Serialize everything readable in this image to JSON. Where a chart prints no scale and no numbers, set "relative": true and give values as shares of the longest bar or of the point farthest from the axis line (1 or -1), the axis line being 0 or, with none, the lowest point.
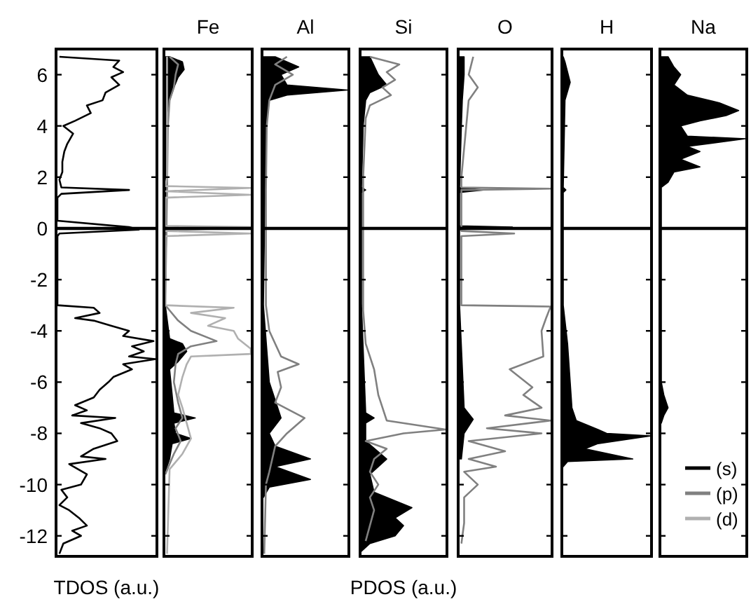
{
  "chart_data": [
    {
      "type": "line",
      "orientation": "horizontal",
      "xlabel": "TDOS (a.u.)",
      "relative": true,
      "ylim": [
        -12.8,
        7
      ],
      "yticks": [
        -12,
        -10,
        -8,
        -6,
        -4,
        -2,
        0,
        2,
        4,
        6
      ],
      "tick_labels": "y",
      "ref_lines": [
        {
          "axis": "y",
          "value": 0
        }
      ],
      "series": [
        {
          "color": "#000000",
          "x": [
            6.7,
            6.55,
            6.3,
            6.1,
            5.9,
            5.6,
            5.3,
            5.0,
            4.8,
            4.5,
            4.2,
            4.0,
            3.7,
            3.3,
            3.0,
            2.6,
            2.2,
            1.9,
            1.6,
            1.5,
            1.35,
            1.2,
            0.3,
            0.05,
            -0.05,
            -0.2,
            -0.3,
            -3.0,
            -3.1,
            -3.3,
            -3.5,
            -3.6,
            -3.8,
            -4.0,
            -4.2,
            -4.4,
            -4.6,
            -4.8,
            -5.0,
            -5.1,
            -5.3,
            -5.5,
            -5.8,
            -6.0,
            -6.3,
            -6.6,
            -6.9,
            -7.1,
            -7.3,
            -7.4,
            -7.6,
            -7.8,
            -8.0,
            -8.3,
            -8.6,
            -8.9,
            -9.0,
            -9.2,
            -9.6,
            -10.0,
            -10.2,
            -10.5,
            -10.8,
            -11.0,
            -11.3,
            -11.6,
            -11.8,
            -12.0,
            -12.3,
            -12.7
          ],
          "values": [
            0.02,
            0.63,
            0.57,
            0.67,
            0.55,
            0.63,
            0.49,
            0.46,
            0.3,
            0.34,
            0.18,
            0.06,
            0.16,
            0.1,
            0.07,
            0.05,
            0.05,
            0.02,
            0.04,
            0.73,
            0.04,
            0,
            0,
            0.73,
            0.83,
            0.02,
            0,
            0,
            0.37,
            0.43,
            0.18,
            0.37,
            0.55,
            0.73,
            0.67,
            0.98,
            0.76,
            0.88,
            0.73,
            1,
            0.67,
            0.76,
            0.57,
            0.52,
            0.43,
            0.37,
            0.18,
            0.3,
            0.15,
            0.59,
            0.24,
            0.43,
            0.55,
            0.61,
            0.37,
            0.24,
            0.49,
            0.12,
            0.3,
            0.24,
            0.04,
            0.1,
            0.02,
            0.12,
            0.22,
            0.3,
            0.15,
            0.24,
            0.06,
            0.02
          ]
        }
      ]
    },
    {
      "type": "line",
      "orientation": "horizontal",
      "title": "Fe",
      "relative": true,
      "ylim": [
        -12.8,
        7
      ],
      "yticks": [
        -12,
        -10,
        -8,
        -6,
        -4,
        -2,
        0,
        2,
        4,
        6
      ],
      "tick_labels": false,
      "ref_lines": [
        {
          "axis": "y",
          "value": 0
        }
      ],
      "series": [
        {
          "type": "area",
          "color": "#000000",
          "x": [
            6.7,
            6.5,
            6.2,
            5.9,
            5.5,
            5.0,
            4.5,
            1.5,
            -3.0,
            -4.3,
            -4.5,
            -4.8,
            -5.2,
            -5.5,
            -6.5,
            -7.2,
            -7.4,
            -7.6,
            -8.0,
            -8.2,
            -8.4,
            -9.0,
            -9.5
          ],
          "values": [
            0.05,
            0.2,
            0.22,
            0.15,
            0.1,
            0.05,
            0.02,
            0.02,
            0,
            0.05,
            0.2,
            0.25,
            0.15,
            0.05,
            0.08,
            0.1,
            0.35,
            0.1,
            0.12,
            0.3,
            0.08,
            0.05,
            0
          ]
        },
        {
          "color": "#808080",
          "x": [
            6.7,
            6.4,
            6.0,
            5.5,
            5.0,
            4.0,
            1.5,
            -3.0,
            -3.2,
            -3.6,
            -4.0,
            -4.4,
            -4.6,
            -4.9,
            -5.3,
            -6.0,
            -6.8,
            -7.4,
            -7.8,
            -8.3,
            -8.8,
            -9.2,
            -9.6
          ],
          "values": [
            0.05,
            0.15,
            0.12,
            0.1,
            0.05,
            0.03,
            0.02,
            0,
            0.05,
            0.15,
            0.3,
            0.6,
            0.3,
            0.15,
            0.12,
            0.1,
            0.15,
            0.2,
            0.12,
            0.18,
            0.1,
            0.05,
            0
          ]
        },
        {
          "color": "#b0b0b0",
          "x": [
            6.7,
            2.0,
            1.65,
            1.58,
            1.45,
            1.31,
            1.2,
            0.1,
            0.05,
            -0.1,
            -0.2,
            -0.3,
            -3.0,
            -3.1,
            -3.3,
            -3.5,
            -3.8,
            -4.0,
            -4.3,
            -4.7,
            -4.9,
            -5.0,
            -5.3,
            -5.8,
            -6.5,
            -7.0,
            -7.6,
            -8.2,
            -8.8,
            -9.0,
            -9.4,
            -12.7
          ],
          "values": [
            0.02,
            0.02,
            0,
            1,
            0,
            1,
            0,
            0,
            1,
            0,
            1,
            0,
            0,
            0.8,
            0.3,
            0.7,
            0.5,
            0.8,
            0.85,
            1,
            1,
            0.3,
            0.25,
            0.2,
            0.15,
            0.2,
            0.25,
            0.3,
            0.2,
            0.15,
            0.05,
            0.02
          ]
        }
      ]
    },
    {
      "type": "line",
      "orientation": "horizontal",
      "title": "Al",
      "relative": true,
      "ylim": [
        -12.8,
        7
      ],
      "yticks": [
        -12,
        -10,
        -8,
        -6,
        -4,
        -2,
        0,
        2,
        4,
        6
      ],
      "tick_labels": false,
      "ref_lines": [
        {
          "axis": "y",
          "value": 0
        }
      ],
      "series": [
        {
          "type": "area",
          "color": "#000000",
          "x": [
            6.7,
            6.3,
            6.0,
            5.6,
            5.4,
            5.2,
            5.0,
            4.0,
            -3.0,
            -6.0,
            -7.4,
            -8.0,
            -8.5,
            -9.0,
            -9.3,
            -9.8,
            -10.1,
            -10.5
          ],
          "values": [
            0.14,
            0.42,
            0.21,
            0.28,
            1,
            0.28,
            0.07,
            0.03,
            0,
            0.07,
            0.21,
            0.07,
            0.14,
            0.56,
            0.14,
            0.56,
            0.07,
            0
          ]
        },
        {
          "color": "#808080",
          "x": [
            6.7,
            6.4,
            6.0,
            5.6,
            5.0,
            4.0,
            1.5,
            -3.0,
            -4.0,
            -5.0,
            -5.3,
            -5.6,
            -6.2,
            -6.8,
            -7.4,
            -8.0,
            -8.5,
            -9.5,
            -10.0,
            -12.7
          ],
          "values": [
            0.28,
            0.14,
            0.35,
            0.14,
            0.07,
            0.04,
            0.03,
            0.03,
            0.07,
            0.21,
            0.42,
            0.17,
            0.21,
            0.14,
            0.49,
            0.28,
            0.14,
            0.07,
            0.03,
            0.01
          ]
        }
      ]
    },
    {
      "type": "line",
      "orientation": "horizontal",
      "title": "Si",
      "xlabel": "PDOS (a.u.)",
      "relative": true,
      "ylim": [
        -12.8,
        7
      ],
      "yticks": [
        -12,
        -10,
        -8,
        -6,
        -4,
        -2,
        0,
        2,
        4,
        6
      ],
      "tick_labels": false,
      "ref_lines": [
        {
          "axis": "y",
          "value": 0
        }
      ],
      "series": [
        {
          "type": "area",
          "color": "#000000",
          "x": [
            6.7,
            6.0,
            5.6,
            5.3,
            5.0,
            4.0,
            1.6,
            1.5,
            1.4,
            -3.0,
            -7.2,
            -7.4,
            -7.6,
            -8.3,
            -9.0,
            -9.6,
            -10.3,
            -10.9,
            -11.3,
            -11.6,
            -12.0,
            -12.3,
            -12.6
          ],
          "values": [
            0.1,
            0.2,
            0.3,
            0.1,
            0.05,
            0.02,
            0,
            0.05,
            0,
            0,
            0.05,
            0.15,
            0.05,
            0.05,
            0.3,
            0.1,
            0.15,
            0.6,
            0.4,
            0.5,
            0.4,
            0.1,
            0
          ]
        },
        {
          "color": "#808080",
          "x": [
            6.7,
            6.4,
            6.1,
            5.8,
            5.5,
            5.2,
            4.8,
            4.3,
            2.0,
            -3.2,
            -4.5,
            -5.5,
            -6.5,
            -7.0,
            -7.5,
            -7.85,
            -8.0,
            -8.3,
            -8.6,
            -9.0,
            -9.5,
            -10.0,
            -10.5,
            -11.0,
            -12.2
          ],
          "values": [
            0.1,
            0.45,
            0.3,
            0.4,
            0.25,
            0.35,
            0.1,
            0.05,
            0.02,
            0.02,
            0.05,
            0.15,
            0.2,
            0.25,
            0.3,
            1,
            0.5,
            0.05,
            0.3,
            0.15,
            0.1,
            0.2,
            0.1,
            0.15,
            0.05
          ]
        }
      ]
    },
    {
      "type": "line",
      "orientation": "horizontal",
      "title": "O",
      "relative": true,
      "ylim": [
        -12.8,
        7
      ],
      "yticks": [
        -12,
        -10,
        -8,
        -6,
        -4,
        -2,
        0,
        2,
        4,
        6
      ],
      "tick_labels": false,
      "ref_lines": [
        {
          "axis": "y",
          "value": 0
        }
      ],
      "series": [
        {
          "type": "area",
          "color": "#000000",
          "x": [
            6.7,
            6.0,
            5.0,
            4.0,
            1.6,
            1.5,
            1.4,
            0.1,
            0.05,
            -0.05,
            -3.0,
            -7.0,
            -7.45,
            -8.0,
            -9.0
          ],
          "values": [
            0.05,
            0.05,
            0.03,
            0.02,
            0,
            0.26,
            0,
            0,
            0.58,
            0,
            0,
            0.05,
            0.15,
            0.05,
            0.02
          ]
        },
        {
          "color": "#808080",
          "x": [
            6.7,
            6.0,
            5.5,
            5.0,
            2.0,
            1.6,
            1.55,
            1.5,
            -0.1,
            -0.2,
            -0.3,
            -3.0,
            -3.05,
            -3.5,
            -4.0,
            -5.0,
            -5.5,
            -6.2,
            -6.5,
            -7.0,
            -7.3,
            -7.5,
            -7.8,
            -8.0,
            -8.3,
            -8.7,
            -9.0,
            -9.3,
            -9.5,
            -10.0,
            -10.5,
            -11.5,
            -12.3
          ],
          "values": [
            0.15,
            0.1,
            0.2,
            0.1,
            0.02,
            0.02,
            1,
            0.02,
            0.02,
            0.6,
            0.02,
            0.02,
            1,
            0.95,
            0.9,
            0.92,
            0.55,
            0.8,
            0.7,
            0.9,
            0.5,
            1,
            0.3,
            0.9,
            0.1,
            0.5,
            0.1,
            0.4,
            0.05,
            0.2,
            0.05,
            0.05,
            0.02
          ]
        }
      ]
    },
    {
      "type": "area",
      "orientation": "horizontal",
      "title": "H",
      "relative": true,
      "ylim": [
        -12.8,
        7
      ],
      "yticks": [
        -12,
        -10,
        -8,
        -6,
        -4,
        -2,
        0,
        2,
        4,
        6
      ],
      "tick_labels": false,
      "ref_lines": [
        {
          "axis": "y",
          "value": 0
        }
      ],
      "series": [
        {
          "color": "#000000",
          "x": [
            6.7,
            6.5,
            5.7,
            5.0,
            1.6,
            1.5,
            1.4,
            -3.0,
            -4.5,
            -6.0,
            -7.0,
            -7.5,
            -7.85,
            -8.0,
            -8.1,
            -8.4,
            -8.6,
            -9.0,
            -9.1,
            -9.3
          ],
          "values": [
            0,
            0.02,
            0.08,
            0.02,
            0,
            0.03,
            0,
            0,
            0.05,
            0.08,
            0.1,
            0.15,
            0.4,
            0.5,
            1,
            0.4,
            0.25,
            0.8,
            0.05,
            0
          ]
        }
      ]
    },
    {
      "type": "area",
      "orientation": "horizontal",
      "title": "Na",
      "relative": true,
      "legend": "bottom right",
      "ylim": [
        -12.8,
        7
      ],
      "yticks": [
        -12,
        -10,
        -8,
        -6,
        -4,
        -2,
        0,
        2,
        4,
        6
      ],
      "tick_labels": false,
      "ref_lines": [
        {
          "axis": "y",
          "value": 0
        }
      ],
      "series": [
        {
          "name": "(s)",
          "color": "#000000",
          "x": [
            6.7,
            6.3,
            6.0,
            5.6,
            5.2,
            4.9,
            4.6,
            4.4,
            4.2,
            4.0,
            3.6,
            3.5,
            3.2,
            3.0,
            2.7,
            2.4,
            2.2,
            1.8,
            1.6,
            -6.0,
            -6.5,
            -7.0,
            -7.3,
            -7.6
          ],
          "values": [
            0.08,
            0.15,
            0.23,
            0.15,
            0.31,
            0.69,
            0.92,
            0.77,
            0.46,
            0.23,
            0.31,
            1,
            0.31,
            0.46,
            0.23,
            0.46,
            0.15,
            0.08,
            0,
            0,
            0.03,
            0.08,
            0.03,
            0
          ]
        },
        {
          "type": "line",
          "name": "(p)",
          "color": "#808080",
          "x": [
            null
          ],
          "values": [
            null
          ]
        },
        {
          "type": "line",
          "name": "(d)",
          "color": "#b0b0b0",
          "x": [
            null
          ],
          "values": [
            null
          ]
        }
      ]
    }
  ]
}
